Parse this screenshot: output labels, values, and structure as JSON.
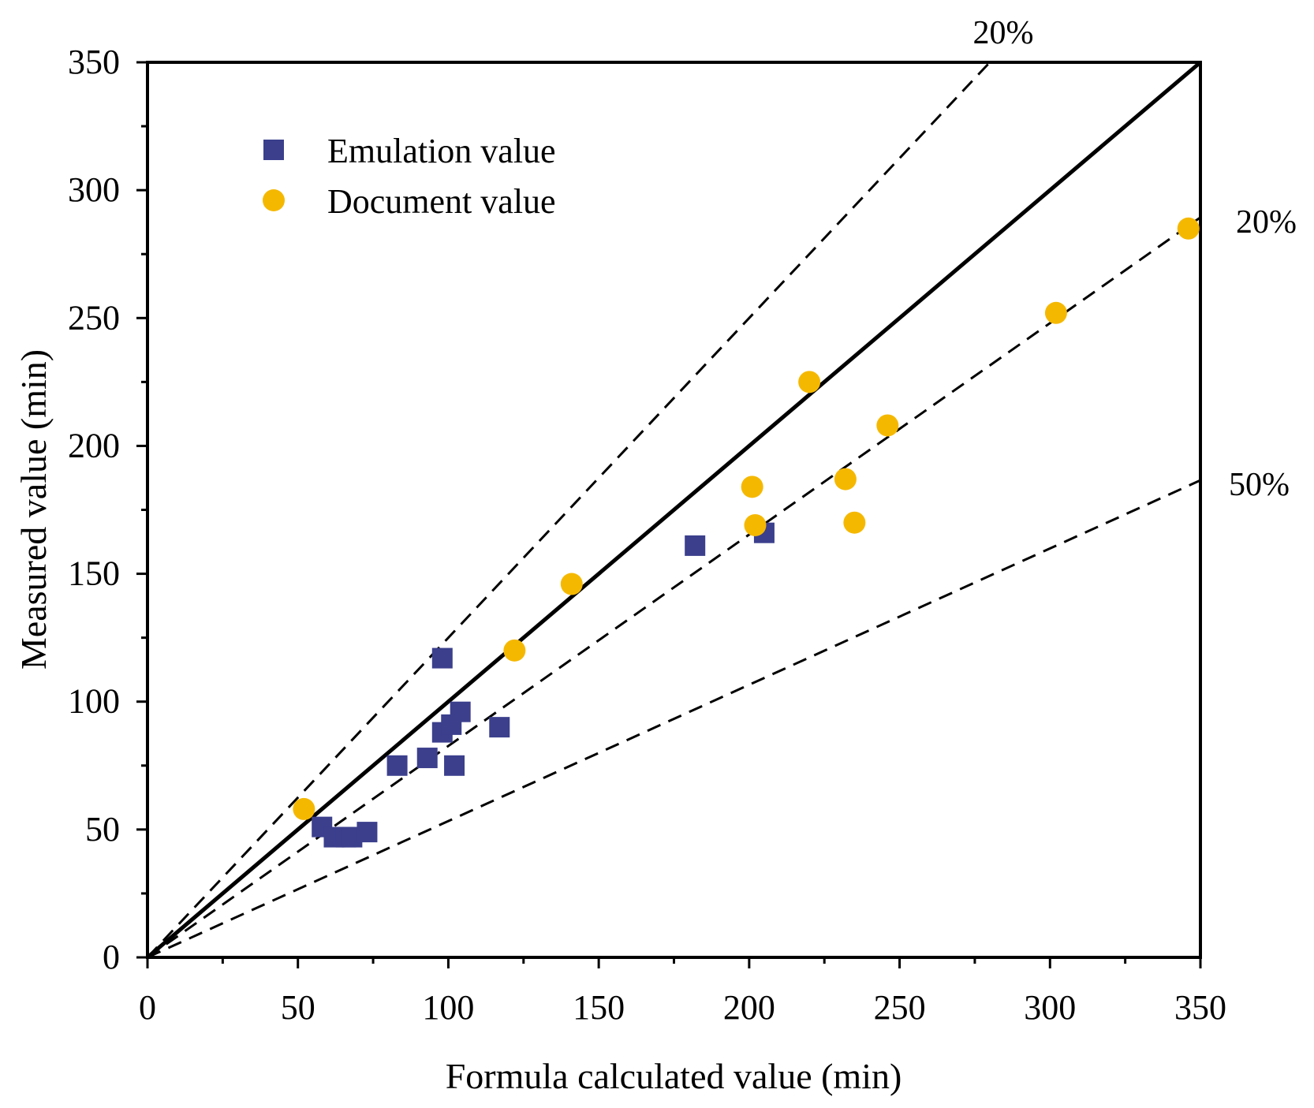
{
  "chart_data": {
    "type": "scatter",
    "title": "",
    "xlabel": "Formula calculated value (min)",
    "ylabel": "Measured value (min)",
    "xlim": [
      0,
      350
    ],
    "ylim": [
      0,
      350
    ],
    "x_ticks": [
      "0",
      "50",
      "100",
      "150",
      "200",
      "250",
      "300",
      "350"
    ],
    "y_ticks": [
      "0",
      "50",
      "100",
      "150",
      "200",
      "250",
      "300",
      "350"
    ],
    "grid": false,
    "legend_position": "top-left",
    "series": [
      {
        "name": "Emulation value",
        "marker": "square",
        "color": "#3b3f8c",
        "points": [
          [
            58,
            51
          ],
          [
            62,
            47
          ],
          [
            66,
            47
          ],
          [
            68,
            47
          ],
          [
            73,
            49
          ],
          [
            83,
            75
          ],
          [
            93,
            78
          ],
          [
            98,
            88
          ],
          [
            98,
            117
          ],
          [
            101,
            91
          ],
          [
            102,
            75
          ],
          [
            104,
            96
          ],
          [
            117,
            90
          ],
          [
            182,
            161
          ],
          [
            205,
            166
          ]
        ]
      },
      {
        "name": "Document value",
        "marker": "circle",
        "color": "#f5b800",
        "points": [
          [
            52,
            58
          ],
          [
            122,
            120
          ],
          [
            141,
            146
          ],
          [
            201,
            184
          ],
          [
            202,
            169
          ],
          [
            220,
            225
          ],
          [
            232,
            187
          ],
          [
            235,
            170
          ],
          [
            246,
            208
          ],
          [
            302,
            252
          ],
          [
            346,
            285
          ]
        ]
      }
    ],
    "reference_lines": [
      {
        "name": "1:1 line",
        "slope": 1.0,
        "style": "solid",
        "label": ""
      },
      {
        "name": "+20% line",
        "slope": 1.25,
        "style": "dashed",
        "label": "20%"
      },
      {
        "name": "-20% line",
        "slope": 0.8267,
        "style": "dashed",
        "label": "20%"
      },
      {
        "name": "-50% line",
        "slope": 0.533,
        "style": "dashed",
        "label": "50%"
      }
    ]
  }
}
